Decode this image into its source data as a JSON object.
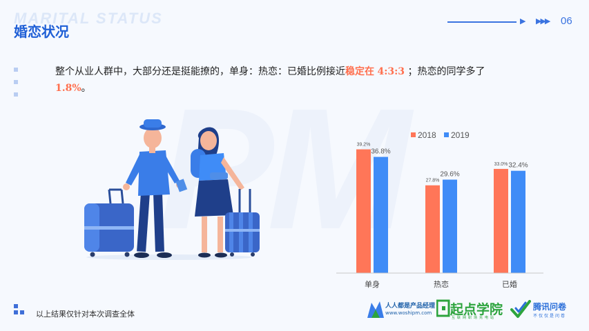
{
  "header": {
    "en_title": "MARITAL STATUS",
    "cn_title": "婚恋状况",
    "page_number": "06"
  },
  "summary": {
    "part1": "整个从业人群中，大部分还是挺能撩的，单身：热恋：已婚比例接近",
    "highlight1_label": "稳定在",
    "highlight1_ratio": "4:3:3",
    "part2": "；热恋的同学多了",
    "highlight2": "1.8%",
    "part3": "。"
  },
  "watermark": "PM",
  "chart_data": {
    "type": "bar",
    "categories": [
      "单身",
      "热恋",
      "已婚"
    ],
    "series": [
      {
        "name": "2018",
        "values": [
          39.2,
          27.8,
          33.0
        ],
        "labels": [
          "39.2%",
          "27.8%",
          "33.0%"
        ],
        "color": "#ff7658"
      },
      {
        "name": "2019",
        "values": [
          36.8,
          29.6,
          32.4
        ],
        "labels": [
          "36.8%",
          "29.6%",
          "32.4%"
        ],
        "color": "#3f8cf7"
      }
    ],
    "ylim": [
      0,
      45
    ],
    "legend_position": "top",
    "grid": false
  },
  "footer": {
    "note": "以上结果仅针对本次调查全体"
  },
  "logos": {
    "woshipm_name": "人人都是产品经理",
    "woshipm_url": "www.woshipm.com",
    "qidian_name": "起点学院",
    "qidian_sub": "互联网职场充电站",
    "wenjuan_name": "腾讯问卷",
    "wenjuan_sub": "不仅仅是问卷"
  },
  "colors": {
    "primary": "#1f5fd6",
    "accent": "#ff6f4e",
    "bar_2018": "#ff7658",
    "bar_2019": "#3f8cf7"
  }
}
